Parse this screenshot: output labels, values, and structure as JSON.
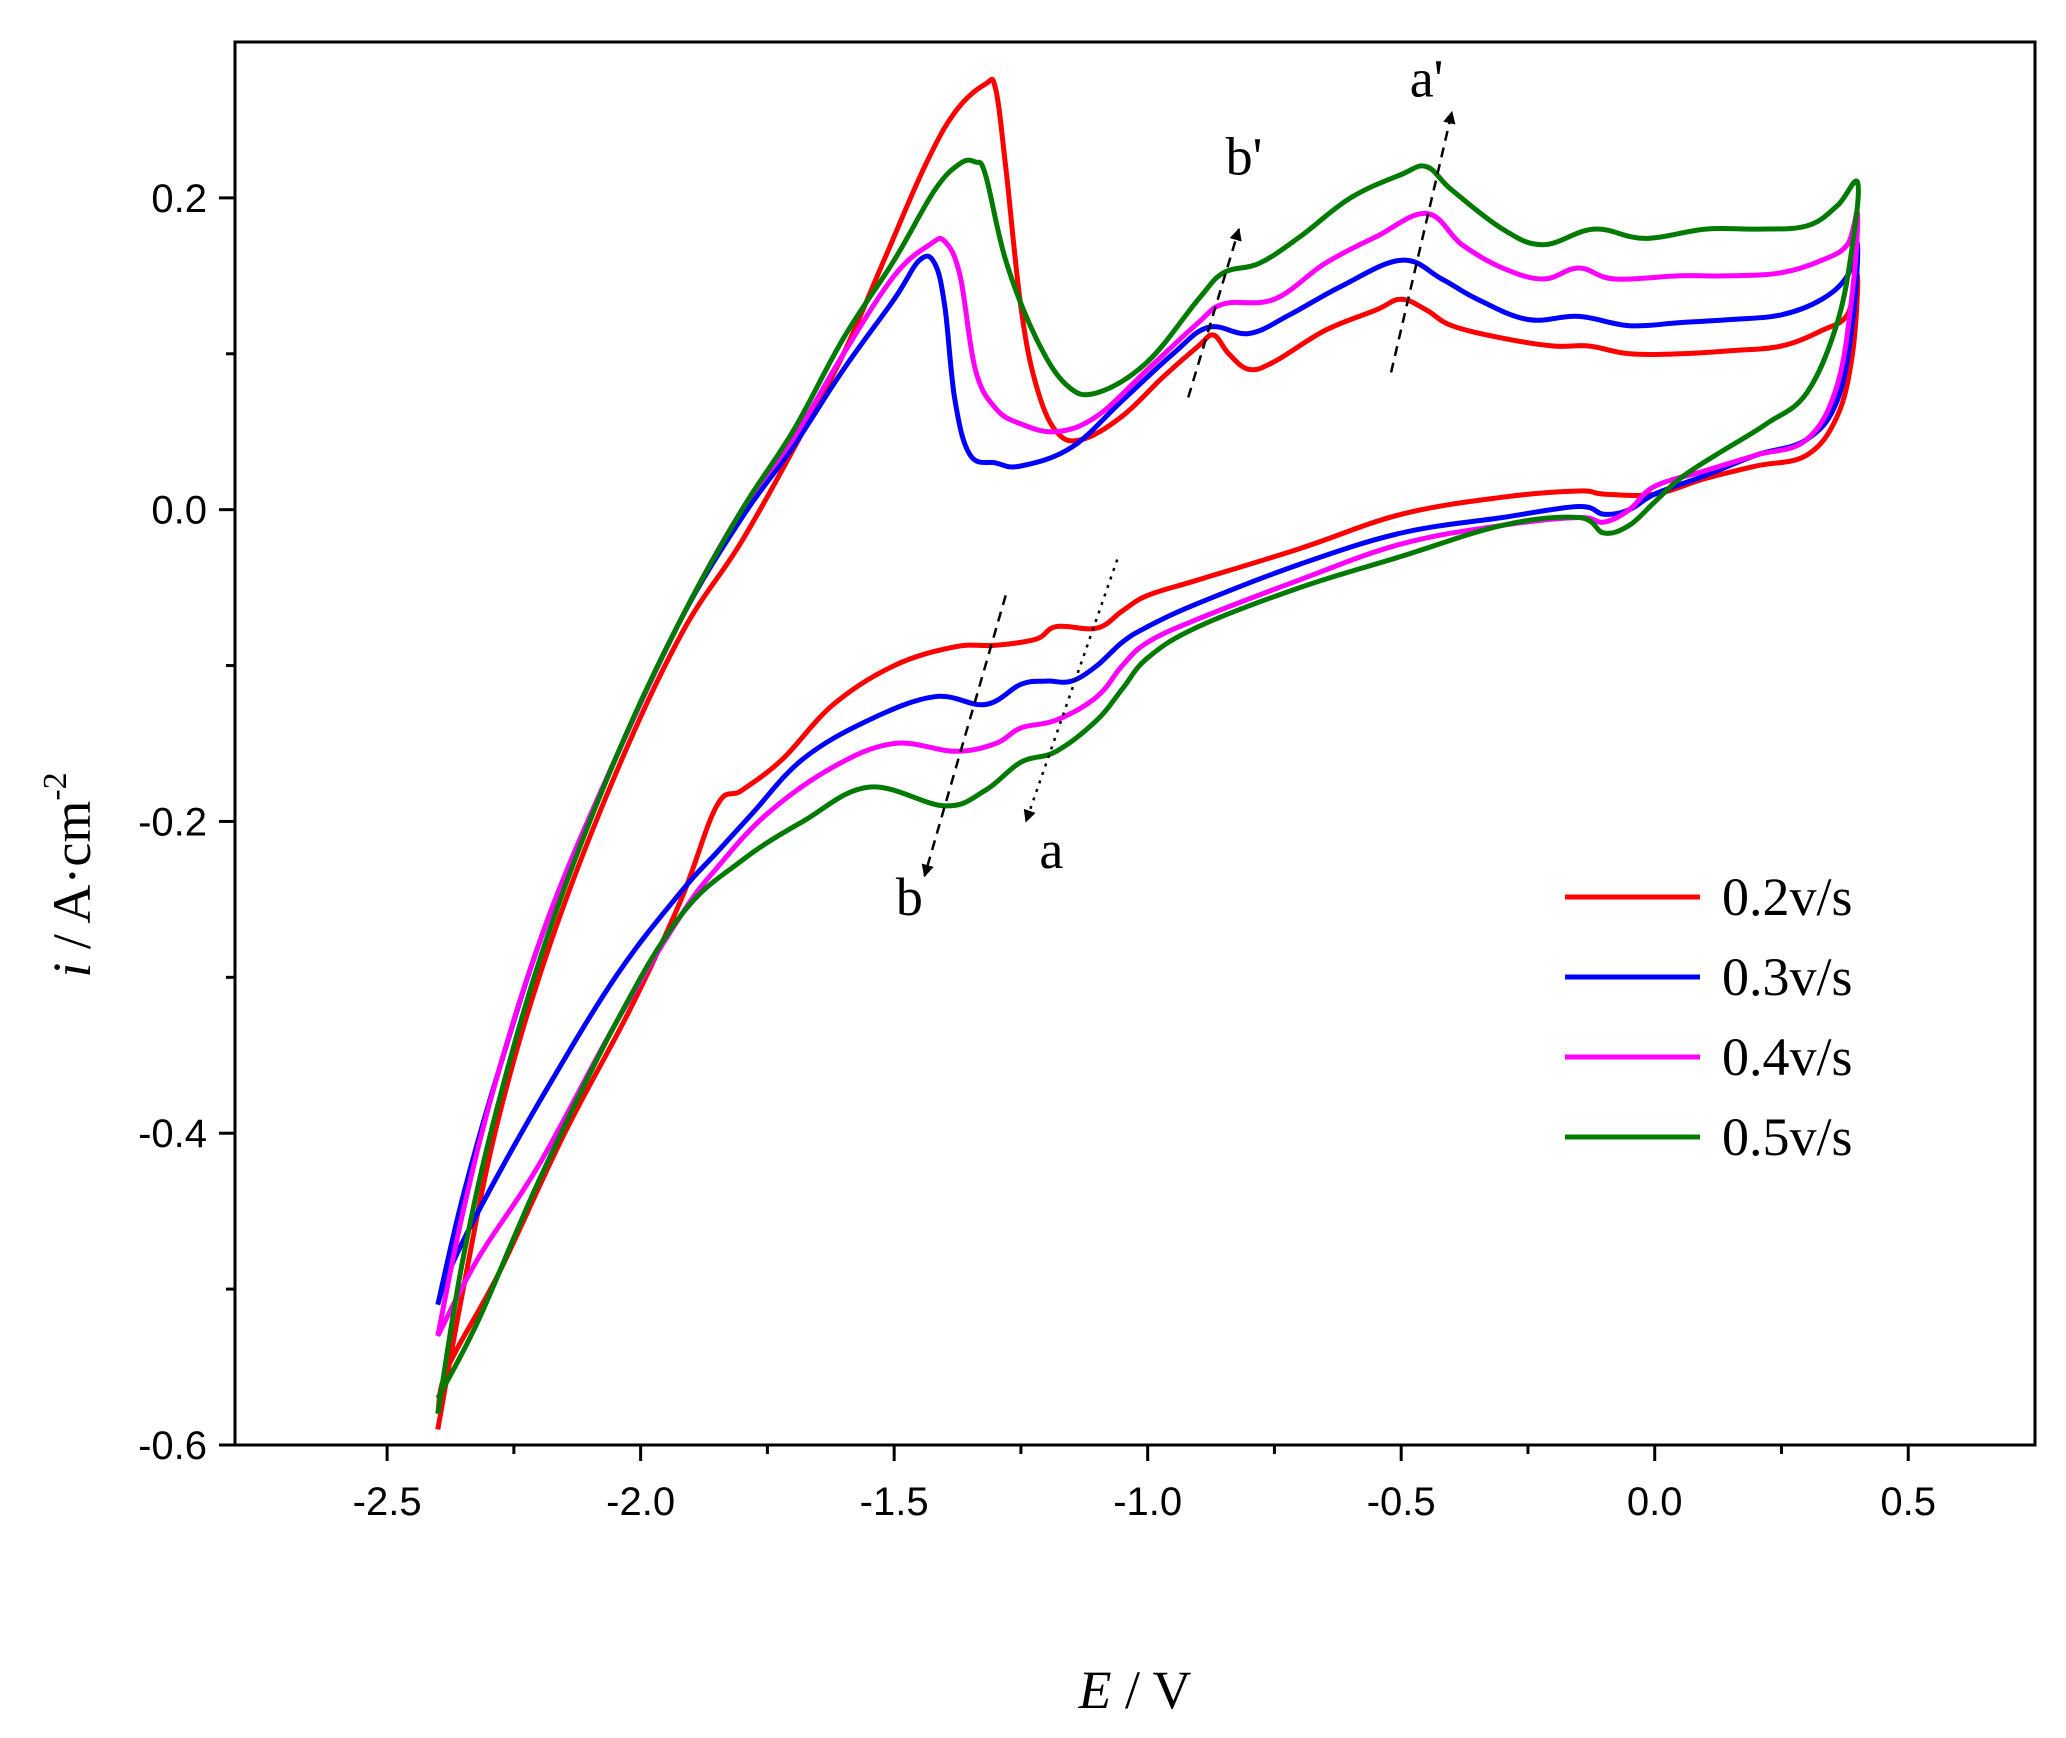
{
  "chart_data": {
    "type": "line",
    "title": "",
    "xlabel": {
      "symbol": "E",
      "unit": " / V"
    },
    "ylabel": {
      "symbol": "i",
      "unit": " / A·cm",
      "sup": "-2"
    },
    "xlim": [
      -2.8,
      0.75
    ],
    "ylim": [
      -0.6,
      0.3
    ],
    "xticks": [
      {
        "v": -2.5,
        "label": "-2.5"
      },
      {
        "v": -2.0,
        "label": "-2.0"
      },
      {
        "v": -1.5,
        "label": "-1.5"
      },
      {
        "v": -1.0,
        "label": "-1.0"
      },
      {
        "v": -0.5,
        "label": "-0.5"
      },
      {
        "v": 0.0,
        "label": "0.0"
      },
      {
        "v": 0.5,
        "label": "0.5"
      }
    ],
    "yticks": [
      {
        "v": -0.6,
        "label": "-0.6"
      },
      {
        "v": -0.4,
        "label": "-0.4"
      },
      {
        "v": -0.2,
        "label": "-0.2"
      },
      {
        "v": 0.0,
        "label": "0.0"
      },
      {
        "v": 0.2,
        "label": "0.2"
      }
    ],
    "legend_position": "bottom-right",
    "series": [
      {
        "name": "0.2v/s",
        "color": "#ff0000",
        "points": [
          [
            -2.4,
            -0.59
          ],
          [
            -2.35,
            -0.5
          ],
          [
            -2.28,
            -0.39
          ],
          [
            -2.18,
            -0.28
          ],
          [
            -2.05,
            -0.17
          ],
          [
            -1.92,
            -0.08
          ],
          [
            -1.8,
            -0.02
          ],
          [
            -1.68,
            0.05
          ],
          [
            -1.6,
            0.1
          ],
          [
            -1.52,
            0.16
          ],
          [
            -1.44,
            0.22
          ],
          [
            -1.38,
            0.255
          ],
          [
            -1.32,
            0.273
          ],
          [
            -1.3,
            0.27
          ],
          [
            -1.28,
            0.22
          ],
          [
            -1.25,
            0.13
          ],
          [
            -1.22,
            0.08
          ],
          [
            -1.18,
            0.05
          ],
          [
            -1.13,
            0.045
          ],
          [
            -1.05,
            0.06
          ],
          [
            -0.97,
            0.085
          ],
          [
            -0.9,
            0.105
          ],
          [
            -0.87,
            0.112
          ],
          [
            -0.84,
            0.1
          ],
          [
            -0.8,
            0.09
          ],
          [
            -0.75,
            0.095
          ],
          [
            -0.65,
            0.115
          ],
          [
            -0.55,
            0.128
          ],
          [
            -0.5,
            0.135
          ],
          [
            -0.45,
            0.128
          ],
          [
            -0.4,
            0.118
          ],
          [
            -0.3,
            0.11
          ],
          [
            -0.2,
            0.105
          ],
          [
            -0.13,
            0.105
          ],
          [
            -0.05,
            0.1
          ],
          [
            0.05,
            0.1
          ],
          [
            0.15,
            0.102
          ],
          [
            0.25,
            0.105
          ],
          [
            0.33,
            0.115
          ],
          [
            0.38,
            0.125
          ],
          [
            0.4,
            0.15
          ],
          [
            0.39,
            0.1
          ],
          [
            0.36,
            0.06
          ],
          [
            0.3,
            0.035
          ],
          [
            0.2,
            0.028
          ],
          [
            0.1,
            0.02
          ],
          [
            0.0,
            0.01
          ],
          [
            -0.1,
            0.01
          ],
          [
            -0.15,
            0.012
          ],
          [
            -0.3,
            0.008
          ],
          [
            -0.5,
            -0.003
          ],
          [
            -0.7,
            -0.025
          ],
          [
            -0.9,
            -0.045
          ],
          [
            -1.0,
            -0.055
          ],
          [
            -1.05,
            -0.065
          ],
          [
            -1.1,
            -0.076
          ],
          [
            -1.18,
            -0.075
          ],
          [
            -1.22,
            -0.083
          ],
          [
            -1.3,
            -0.087
          ],
          [
            -1.38,
            -0.088
          ],
          [
            -1.5,
            -0.1
          ],
          [
            -1.62,
            -0.125
          ],
          [
            -1.72,
            -0.16
          ],
          [
            -1.8,
            -0.18
          ],
          [
            -1.85,
            -0.19
          ],
          [
            -1.92,
            -0.25
          ],
          [
            -2.02,
            -0.32
          ],
          [
            -2.15,
            -0.4
          ],
          [
            -2.28,
            -0.49
          ],
          [
            -2.38,
            -0.55
          ],
          [
            -2.4,
            -0.58
          ]
        ]
      },
      {
        "name": "0.3v/s",
        "color": "#0000ff",
        "points": [
          [
            -2.4,
            -0.51
          ],
          [
            -2.35,
            -0.44
          ],
          [
            -2.28,
            -0.36
          ],
          [
            -2.18,
            -0.26
          ],
          [
            -2.05,
            -0.16
          ],
          [
            -1.92,
            -0.07
          ],
          [
            -1.8,
            -0.005
          ],
          [
            -1.7,
            0.04
          ],
          [
            -1.6,
            0.09
          ],
          [
            -1.5,
            0.135
          ],
          [
            -1.45,
            0.16
          ],
          [
            -1.42,
            0.158
          ],
          [
            -1.4,
            0.13
          ],
          [
            -1.38,
            0.07
          ],
          [
            -1.35,
            0.035
          ],
          [
            -1.3,
            0.03
          ],
          [
            -1.25,
            0.028
          ],
          [
            -1.15,
            0.04
          ],
          [
            -1.05,
            0.07
          ],
          [
            -0.95,
            0.1
          ],
          [
            -0.88,
            0.117
          ],
          [
            -0.8,
            0.113
          ],
          [
            -0.72,
            0.125
          ],
          [
            -0.62,
            0.143
          ],
          [
            -0.5,
            0.16
          ],
          [
            -0.42,
            0.148
          ],
          [
            -0.35,
            0.135
          ],
          [
            -0.25,
            0.122
          ],
          [
            -0.15,
            0.124
          ],
          [
            -0.05,
            0.118
          ],
          [
            0.05,
            0.12
          ],
          [
            0.15,
            0.122
          ],
          [
            0.25,
            0.125
          ],
          [
            0.33,
            0.135
          ],
          [
            0.38,
            0.15
          ],
          [
            0.4,
            0.17
          ],
          [
            0.39,
            0.12
          ],
          [
            0.36,
            0.07
          ],
          [
            0.3,
            0.045
          ],
          [
            0.2,
            0.035
          ],
          [
            0.1,
            0.022
          ],
          [
            0.0,
            0.01
          ],
          [
            -0.05,
            0.0
          ],
          [
            -0.1,
            -0.003
          ],
          [
            -0.15,
            0.002
          ],
          [
            -0.3,
            -0.005
          ],
          [
            -0.5,
            -0.015
          ],
          [
            -0.7,
            -0.035
          ],
          [
            -0.9,
            -0.06
          ],
          [
            -1.0,
            -0.075
          ],
          [
            -1.05,
            -0.085
          ],
          [
            -1.1,
            -0.1
          ],
          [
            -1.15,
            -0.11
          ],
          [
            -1.2,
            -0.11
          ],
          [
            -1.25,
            -0.112
          ],
          [
            -1.32,
            -0.125
          ],
          [
            -1.42,
            -0.12
          ],
          [
            -1.55,
            -0.135
          ],
          [
            -1.68,
            -0.16
          ],
          [
            -1.78,
            -0.195
          ],
          [
            -1.85,
            -0.22
          ],
          [
            -1.92,
            -0.245
          ],
          [
            -2.05,
            -0.3
          ],
          [
            -2.2,
            -0.38
          ],
          [
            -2.32,
            -0.45
          ],
          [
            -2.38,
            -0.49
          ],
          [
            -2.4,
            -0.51
          ]
        ]
      },
      {
        "name": "0.4v/s",
        "color": "#ff00ff",
        "points": [
          [
            -2.4,
            -0.53
          ],
          [
            -2.35,
            -0.45
          ],
          [
            -2.28,
            -0.36
          ],
          [
            -2.18,
            -0.26
          ],
          [
            -2.05,
            -0.16
          ],
          [
            -1.92,
            -0.07
          ],
          [
            -1.8,
            0.0
          ],
          [
            -1.7,
            0.045
          ],
          [
            -1.6,
            0.1
          ],
          [
            -1.5,
            0.15
          ],
          [
            -1.43,
            0.17
          ],
          [
            -1.4,
            0.172
          ],
          [
            -1.37,
            0.15
          ],
          [
            -1.34,
            0.09
          ],
          [
            -1.3,
            0.065
          ],
          [
            -1.25,
            0.055
          ],
          [
            -1.18,
            0.05
          ],
          [
            -1.1,
            0.06
          ],
          [
            -1.0,
            0.09
          ],
          [
            -0.9,
            0.12
          ],
          [
            -0.85,
            0.132
          ],
          [
            -0.75,
            0.135
          ],
          [
            -0.65,
            0.158
          ],
          [
            -0.55,
            0.175
          ],
          [
            -0.45,
            0.19
          ],
          [
            -0.38,
            0.17
          ],
          [
            -0.3,
            0.155
          ],
          [
            -0.22,
            0.148
          ],
          [
            -0.15,
            0.155
          ],
          [
            -0.08,
            0.148
          ],
          [
            0.05,
            0.15
          ],
          [
            0.15,
            0.15
          ],
          [
            0.25,
            0.152
          ],
          [
            0.33,
            0.16
          ],
          [
            0.38,
            0.17
          ],
          [
            0.4,
            0.19
          ],
          [
            0.39,
            0.14
          ],
          [
            0.36,
            0.08
          ],
          [
            0.3,
            0.045
          ],
          [
            0.2,
            0.035
          ],
          [
            0.1,
            0.025
          ],
          [
            0.0,
            0.015
          ],
          [
            -0.05,
            0.0
          ],
          [
            -0.1,
            -0.008
          ],
          [
            -0.15,
            -0.005
          ],
          [
            -0.3,
            -0.01
          ],
          [
            -0.5,
            -0.022
          ],
          [
            -0.7,
            -0.045
          ],
          [
            -0.9,
            -0.07
          ],
          [
            -1.0,
            -0.085
          ],
          [
            -1.05,
            -0.1
          ],
          [
            -1.1,
            -0.12
          ],
          [
            -1.18,
            -0.135
          ],
          [
            -1.25,
            -0.14
          ],
          [
            -1.3,
            -0.15
          ],
          [
            -1.38,
            -0.155
          ],
          [
            -1.5,
            -0.15
          ],
          [
            -1.62,
            -0.165
          ],
          [
            -1.75,
            -0.195
          ],
          [
            -1.85,
            -0.23
          ],
          [
            -1.92,
            -0.26
          ],
          [
            -2.05,
            -0.33
          ],
          [
            -2.2,
            -0.42
          ],
          [
            -2.32,
            -0.48
          ],
          [
            -2.4,
            -0.53
          ]
        ]
      },
      {
        "name": "0.5v/s",
        "color": "#007a00",
        "points": [
          [
            -2.4,
            -0.58
          ],
          [
            -2.35,
            -0.48
          ],
          [
            -2.28,
            -0.38
          ],
          [
            -2.18,
            -0.27
          ],
          [
            -2.05,
            -0.16
          ],
          [
            -1.92,
            -0.07
          ],
          [
            -1.8,
            0.0
          ],
          [
            -1.7,
            0.05
          ],
          [
            -1.6,
            0.11
          ],
          [
            -1.5,
            0.16
          ],
          [
            -1.42,
            0.205
          ],
          [
            -1.37,
            0.222
          ],
          [
            -1.34,
            0.223
          ],
          [
            -1.32,
            0.215
          ],
          [
            -1.28,
            0.16
          ],
          [
            -1.22,
            0.11
          ],
          [
            -1.16,
            0.08
          ],
          [
            -1.1,
            0.075
          ],
          [
            -1.0,
            0.095
          ],
          [
            -0.9,
            0.135
          ],
          [
            -0.85,
            0.152
          ],
          [
            -0.78,
            0.158
          ],
          [
            -0.7,
            0.175
          ],
          [
            -0.6,
            0.2
          ],
          [
            -0.5,
            0.215
          ],
          [
            -0.45,
            0.22
          ],
          [
            -0.4,
            0.205
          ],
          [
            -0.3,
            0.18
          ],
          [
            -0.22,
            0.17
          ],
          [
            -0.12,
            0.18
          ],
          [
            -0.02,
            0.174
          ],
          [
            0.1,
            0.18
          ],
          [
            0.2,
            0.18
          ],
          [
            0.3,
            0.182
          ],
          [
            0.36,
            0.195
          ],
          [
            0.4,
            0.21
          ],
          [
            0.39,
            0.17
          ],
          [
            0.36,
            0.12
          ],
          [
            0.3,
            0.075
          ],
          [
            0.22,
            0.055
          ],
          [
            0.12,
            0.035
          ],
          [
            0.05,
            0.02
          ],
          [
            0.0,
            0.005
          ],
          [
            -0.05,
            -0.01
          ],
          [
            -0.1,
            -0.015
          ],
          [
            -0.15,
            -0.005
          ],
          [
            -0.3,
            -0.01
          ],
          [
            -0.5,
            -0.03
          ],
          [
            -0.7,
            -0.05
          ],
          [
            -0.9,
            -0.075
          ],
          [
            -1.0,
            -0.095
          ],
          [
            -1.05,
            -0.115
          ],
          [
            -1.1,
            -0.135
          ],
          [
            -1.18,
            -0.155
          ],
          [
            -1.25,
            -0.162
          ],
          [
            -1.32,
            -0.18
          ],
          [
            -1.4,
            -0.19
          ],
          [
            -1.55,
            -0.178
          ],
          [
            -1.68,
            -0.2
          ],
          [
            -1.8,
            -0.225
          ],
          [
            -1.92,
            -0.26
          ],
          [
            -2.05,
            -0.33
          ],
          [
            -2.2,
            -0.43
          ],
          [
            -2.32,
            -0.52
          ],
          [
            -2.4,
            -0.57
          ]
        ]
      }
    ],
    "annotations": [
      {
        "label": "a'",
        "at": [
          -0.45,
          0.265
        ],
        "arrow": {
          "from": [
            -0.52,
            0.088
          ],
          "to": [
            -0.4,
            0.255
          ],
          "style": "dashed"
        }
      },
      {
        "label": "b'",
        "at": [
          -0.81,
          0.215
        ],
        "arrow": {
          "from": [
            -0.92,
            0.072
          ],
          "to": [
            -0.82,
            0.18
          ],
          "style": "dashed"
        }
      },
      {
        "label": "b",
        "at": [
          -1.47,
          -0.26
        ],
        "arrow": {
          "from": [
            -1.28,
            -0.055
          ],
          "to": [
            -1.44,
            -0.235
          ],
          "style": "dashed"
        }
      },
      {
        "label": "a",
        "at": [
          -1.19,
          -0.23
        ],
        "arrow": {
          "from": [
            -1.06,
            -0.032
          ],
          "to": [
            -1.24,
            -0.2
          ],
          "style": "dotted"
        }
      }
    ]
  }
}
